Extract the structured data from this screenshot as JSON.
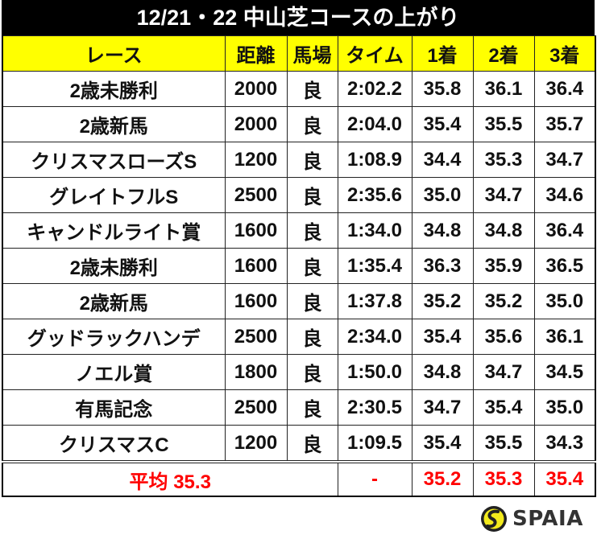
{
  "title": "12/21・22 中山芝コースの上がり",
  "columns": [
    "レース",
    "距離",
    "馬場",
    "タイム",
    "1着",
    "2着",
    "3着"
  ],
  "rows": [
    [
      "2歳未勝利",
      "2000",
      "良",
      "2:02.2",
      "35.8",
      "36.1",
      "36.4"
    ],
    [
      "2歳新馬",
      "2000",
      "良",
      "2:04.0",
      "35.4",
      "35.5",
      "35.7"
    ],
    [
      "クリスマスローズS",
      "1200",
      "良",
      "1:08.9",
      "34.4",
      "35.3",
      "34.7"
    ],
    [
      "グレイトフルS",
      "2500",
      "良",
      "2:35.6",
      "35.0",
      "34.7",
      "34.6"
    ],
    [
      "キャンドルライト賞",
      "1600",
      "良",
      "1:34.0",
      "34.8",
      "34.8",
      "36.4"
    ],
    [
      "2歳未勝利",
      "1600",
      "良",
      "1:35.4",
      "36.3",
      "35.9",
      "36.5"
    ],
    [
      "2歳新馬",
      "1600",
      "良",
      "1:37.8",
      "35.2",
      "35.2",
      "35.0"
    ],
    [
      "グッドラックハンデ",
      "2500",
      "良",
      "2:34.0",
      "35.4",
      "35.6",
      "36.1"
    ],
    [
      "ノエル賞",
      "1800",
      "良",
      "1:50.0",
      "34.8",
      "34.7",
      "34.5"
    ],
    [
      "有馬記念",
      "2500",
      "良",
      "2:30.5",
      "34.7",
      "35.4",
      "35.0"
    ],
    [
      "クリスマスC",
      "1200",
      "良",
      "1:09.5",
      "35.4",
      "35.5",
      "34.3"
    ]
  ],
  "average": {
    "label": "平均 35.3",
    "time": "-",
    "first": "35.2",
    "second": "35.3",
    "third": "35.4"
  },
  "logo": {
    "icon": "spaia-logo-icon",
    "text": "SPAIA"
  },
  "colors": {
    "header_bg": "#ffff00",
    "title_bg": "#000000",
    "average_text": "#ff0000",
    "logo_yellow": "#f2ea1c"
  }
}
